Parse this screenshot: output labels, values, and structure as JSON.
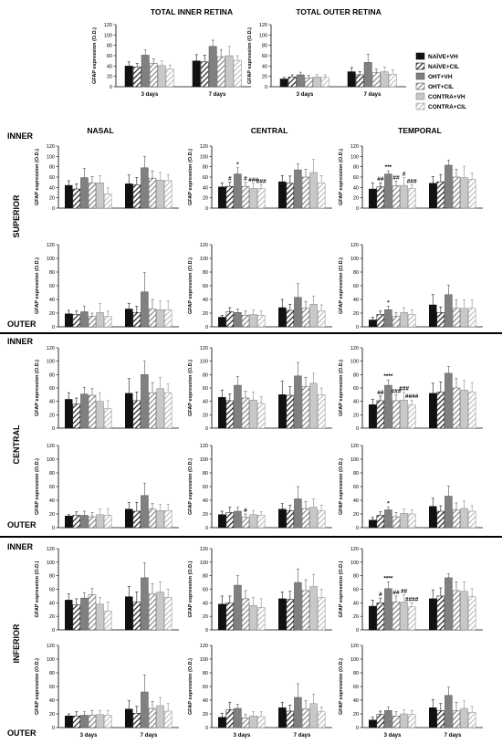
{
  "figure": {
    "top_titles": [
      "TOTAL INNER RETINA",
      "TOTAL OUTER RETINA"
    ],
    "column_titles": [
      "NASAL",
      "CENTRAL",
      "TEMPORAL"
    ],
    "row_group_labels": [
      "SUPERIOR",
      "CENTRAL",
      "INFERIOR"
    ],
    "layer_labels": {
      "inner": "INNER",
      "outer": "OUTER"
    }
  },
  "legend": [
    {
      "label": "NAÏVE+VH",
      "pattern": "solid-black"
    },
    {
      "label": "NAÏVE+CIL",
      "pattern": "hatch-black"
    },
    {
      "label": "OHT+VH",
      "pattern": "solid-gray"
    },
    {
      "label": "OHT+CIL",
      "pattern": "hatch-gray"
    },
    {
      "label": "CONTRA+VH",
      "pattern": "solid-light"
    },
    {
      "label": "CONTRA+CIL",
      "pattern": "hatch-light"
    }
  ],
  "colors": {
    "naive": "#111111",
    "oht": "#808080",
    "contra": "#c8c8c8",
    "separator": "#000000"
  },
  "chart_data": [
    {
      "id": "total-inner",
      "type": "bar",
      "title": "TOTAL INNER RETINA",
      "ylabel": "GFAP expression (O.D.)",
      "ylim": [
        0,
        120
      ],
      "ticks": [
        0,
        20,
        40,
        60,
        80,
        100,
        120
      ],
      "categories": [
        "3 days",
        "7 days"
      ],
      "series_names": [
        "NAÏVE+VH",
        "NAÏVE+CIL",
        "OHT+VH",
        "OHT+CIL",
        "CONTRA+VH",
        "CONTRA+CIL"
      ],
      "values": [
        [
          40,
          38,
          61,
          45,
          41,
          34
        ],
        [
          50,
          48,
          78,
          58,
          60,
          51
        ]
      ],
      "errors": [
        [
          8,
          7,
          10,
          9,
          9,
          8
        ],
        [
          12,
          13,
          12,
          14,
          18,
          9
        ]
      ],
      "annotations": []
    },
    {
      "id": "total-outer",
      "type": "bar",
      "title": "TOTAL OUTER RETINA",
      "ylabel": "GFAP expression (O.D.)",
      "ylim": [
        0,
        120
      ],
      "ticks": [
        0,
        20,
        40,
        60,
        80,
        100,
        120
      ],
      "categories": [
        "3 days",
        "7 days"
      ],
      "series_names": [
        "NAÏVE+VH",
        "NAÏVE+CIL",
        "OHT+VH",
        "OHT+CIL",
        "CONTRA+VH",
        "CONTRA+CIL"
      ],
      "values": [
        [
          15,
          19,
          23,
          17,
          19,
          18
        ],
        [
          29,
          23,
          47,
          27,
          29,
          24
        ]
      ],
      "errors": [
        [
          3,
          4,
          5,
          5,
          5,
          5
        ],
        [
          8,
          6,
          16,
          7,
          9,
          9
        ]
      ],
      "annotations": []
    },
    {
      "id": "sup-inner-nasal",
      "type": "bar",
      "ylabel": "GFAP expression (O.D.)",
      "ylim": [
        0,
        120
      ],
      "ticks": [
        0,
        20,
        40,
        60,
        80,
        100,
        120
      ],
      "categories": [
        "3 days",
        "7 days"
      ],
      "values": [
        [
          44,
          37,
          59,
          49,
          49,
          27
        ],
        [
          47,
          45,
          78,
          58,
          54,
          53
        ]
      ],
      "errors": [
        [
          9,
          10,
          18,
          12,
          14,
          12
        ],
        [
          17,
          14,
          22,
          14,
          15,
          12
        ]
      ],
      "annotations": []
    },
    {
      "id": "sup-inner-central",
      "type": "bar",
      "ylabel": "GFAP expression (O.D.)",
      "ylim": [
        0,
        120
      ],
      "ticks": [
        0,
        20,
        40,
        60,
        80,
        100,
        120
      ],
      "categories": [
        "3 days",
        "7 days"
      ],
      "values": [
        [
          41,
          42,
          66,
          42,
          38,
          38
        ],
        [
          51,
          48,
          74,
          60,
          69,
          49
        ]
      ],
      "errors": [
        [
          8,
          8,
          12,
          8,
          10,
          7
        ],
        [
          12,
          14,
          12,
          15,
          25,
          14
        ]
      ],
      "annotations": [
        {
          "cat": 0,
          "bar": 1,
          "text": "#"
        },
        {
          "cat": 0,
          "bar": 2,
          "text": "*"
        },
        {
          "cat": 0,
          "bar": 3,
          "text": "#"
        },
        {
          "cat": 0,
          "bar": 4,
          "text": "###"
        },
        {
          "cat": 0,
          "bar": 5,
          "text": "###"
        }
      ]
    },
    {
      "id": "sup-inner-temporal",
      "type": "bar",
      "ylabel": "GFAP expression (O.D.)",
      "ylim": [
        0,
        120
      ],
      "ticks": [
        0,
        20,
        40,
        60,
        80,
        100,
        120
      ],
      "categories": [
        "3 days",
        "7 days"
      ],
      "values": [
        [
          37,
          41,
          66,
          43,
          44,
          38
        ],
        [
          48,
          51,
          83,
          60,
          59,
          56
        ]
      ],
      "errors": [
        [
          12,
          8,
          6,
          9,
          15,
          7
        ],
        [
          13,
          14,
          10,
          15,
          22,
          12
        ]
      ],
      "annotations": [
        {
          "cat": 0,
          "bar": 1,
          "text": "##"
        },
        {
          "cat": 0,
          "bar": 2,
          "text": "***"
        },
        {
          "cat": 0,
          "bar": 3,
          "text": "##"
        },
        {
          "cat": 0,
          "bar": 4,
          "text": "#"
        },
        {
          "cat": 0,
          "bar": 5,
          "text": "###"
        }
      ]
    },
    {
      "id": "sup-outer-nasal",
      "type": "bar",
      "ylabel": "GFAP expression (O.D.)",
      "ylim": [
        0,
        120
      ],
      "ticks": [
        0,
        20,
        40,
        60,
        80,
        100,
        120
      ],
      "categories": [
        "3 days",
        "7 days"
      ],
      "values": [
        [
          19,
          18,
          22,
          15,
          21,
          15
        ],
        [
          26,
          21,
          51,
          26,
          25,
          25
        ]
      ],
      "errors": [
        [
          5,
          5,
          8,
          5,
          13,
          8
        ],
        [
          8,
          9,
          28,
          14,
          13,
          13
        ]
      ],
      "annotations": []
    },
    {
      "id": "sup-outer-central",
      "type": "bar",
      "ylabel": "GFAP expression (O.D.)",
      "ylim": [
        0,
        120
      ],
      "ticks": [
        0,
        20,
        40,
        60,
        80,
        100,
        120
      ],
      "categories": [
        "3 days",
        "7 days"
      ],
      "values": [
        [
          14,
          22,
          21,
          17,
          18,
          17
        ],
        [
          28,
          24,
          43,
          27,
          33,
          23
        ]
      ],
      "errors": [
        [
          3,
          6,
          5,
          6,
          7,
          6
        ],
        [
          12,
          9,
          20,
          10,
          12,
          9
        ]
      ],
      "annotations": []
    },
    {
      "id": "sup-outer-temporal",
      "type": "bar",
      "ylabel": "GFAP expression (O.D.)",
      "ylim": [
        0,
        120
      ],
      "ticks": [
        0,
        20,
        40,
        60,
        80,
        100,
        120
      ],
      "categories": [
        "3 days",
        "7 days"
      ],
      "values": [
        [
          10,
          18,
          25,
          15,
          21,
          18
        ],
        [
          32,
          21,
          47,
          27,
          27,
          27
        ]
      ],
      "errors": [
        [
          4,
          5,
          5,
          6,
          7,
          7
        ],
        [
          15,
          8,
          14,
          12,
          12,
          12
        ]
      ],
      "annotations": [
        {
          "cat": 0,
          "bar": 2,
          "text": "*"
        }
      ]
    },
    {
      "id": "cen-inner-nasal",
      "type": "bar",
      "ylabel": "GFAP expression (O.D.)",
      "ylim": [
        0,
        120
      ],
      "ticks": [
        0,
        20,
        40,
        60,
        80,
        100,
        120
      ],
      "categories": [
        "3 days",
        "7 days"
      ],
      "values": [
        [
          43,
          36,
          51,
          49,
          40,
          29
        ],
        [
          52,
          41,
          80,
          53,
          59,
          53
        ]
      ],
      "errors": [
        [
          10,
          9,
          10,
          10,
          13,
          12
        ],
        [
          22,
          13,
          20,
          15,
          17,
          13
        ]
      ],
      "annotations": []
    },
    {
      "id": "cen-inner-central",
      "type": "bar",
      "ylabel": "GFAP expression (O.D.)",
      "ylim": [
        0,
        120
      ],
      "ticks": [
        0,
        20,
        40,
        60,
        80,
        100,
        120
      ],
      "categories": [
        "3 days",
        "7 days"
      ],
      "values": [
        [
          46,
          41,
          64,
          45,
          42,
          37
        ],
        [
          50,
          49,
          78,
          62,
          67,
          50
        ]
      ],
      "errors": [
        [
          11,
          10,
          13,
          10,
          12,
          10
        ],
        [
          20,
          13,
          20,
          14,
          15,
          10
        ]
      ],
      "annotations": []
    },
    {
      "id": "cen-inner-temporal",
      "type": "bar",
      "ylabel": "GFAP expression (O.D.)",
      "ylim": [
        0,
        120
      ],
      "ticks": [
        0,
        20,
        40,
        60,
        80,
        100,
        120
      ],
      "categories": [
        "3 days",
        "7 days"
      ],
      "values": [
        [
          35,
          41,
          64,
          41,
          42,
          35
        ],
        [
          52,
          54,
          82,
          60,
          57,
          54
        ]
      ],
      "errors": [
        [
          8,
          7,
          8,
          9,
          12,
          7
        ],
        [
          15,
          15,
          10,
          14,
          14,
          14
        ]
      ],
      "annotations": [
        {
          "cat": 0,
          "bar": 1,
          "text": "##"
        },
        {
          "cat": 0,
          "bar": 2,
          "text": "****"
        },
        {
          "cat": 0,
          "bar": 3,
          "text": "###"
        },
        {
          "cat": 0,
          "bar": 4,
          "text": "###"
        },
        {
          "cat": 0,
          "bar": 5,
          "text": "####"
        }
      ]
    },
    {
      "id": "cen-outer-nasal",
      "type": "bar",
      "ylabel": "GFAP expression (O.D.)",
      "ylim": [
        0,
        120
      ],
      "ticks": [
        0,
        20,
        40,
        60,
        80,
        100,
        120
      ],
      "categories": [
        "3 days",
        "7 days"
      ],
      "values": [
        [
          17,
          18,
          18,
          16,
          19,
          18
        ],
        [
          27,
          24,
          47,
          27,
          25,
          25
        ]
      ],
      "errors": [
        [
          2,
          5,
          6,
          6,
          8,
          10
        ],
        [
          10,
          13,
          18,
          8,
          9,
          9
        ]
      ],
      "annotations": []
    },
    {
      "id": "cen-outer-central",
      "type": "bar",
      "ylabel": "GFAP expression (O.D.)",
      "ylim": [
        0,
        120
      ],
      "ticks": [
        0,
        20,
        40,
        60,
        80,
        100,
        120
      ],
      "categories": [
        "3 days",
        "7 days"
      ],
      "values": [
        [
          19,
          22,
          24,
          15,
          19,
          18
        ],
        [
          27,
          25,
          42,
          28,
          30,
          25
        ]
      ],
      "errors": [
        [
          5,
          8,
          6,
          5,
          6,
          5
        ],
        [
          8,
          8,
          18,
          10,
          12,
          8
        ]
      ],
      "annotations": [
        {
          "cat": 0,
          "bar": 3,
          "text": "#"
        }
      ]
    },
    {
      "id": "cen-outer-temporal",
      "type": "bar",
      "ylabel": "GFAP expression (O.D.)",
      "ylim": [
        0,
        120
      ],
      "ticks": [
        0,
        20,
        40,
        60,
        80,
        100,
        120
      ],
      "categories": [
        "3 days",
        "7 days"
      ],
      "values": [
        [
          11,
          18,
          26,
          16,
          21,
          20
        ],
        [
          31,
          24,
          46,
          26,
          28,
          24
        ]
      ],
      "errors": [
        [
          4,
          5,
          4,
          6,
          6,
          6
        ],
        [
          12,
          8,
          15,
          10,
          11,
          8
        ]
      ],
      "annotations": [
        {
          "cat": 0,
          "bar": 2,
          "text": "*"
        }
      ]
    },
    {
      "id": "inf-inner-nasal",
      "type": "bar",
      "ylabel": "GFAP expression (O.D.)",
      "ylim": [
        0,
        120
      ],
      "ticks": [
        0,
        20,
        40,
        60,
        80,
        100,
        120
      ],
      "categories": [
        "3 days",
        "7 days"
      ],
      "values": [
        [
          44,
          37,
          47,
          52,
          38,
          28
        ],
        [
          49,
          41,
          77,
          53,
          56,
          48
        ]
      ],
      "errors": [
        [
          9,
          9,
          8,
          9,
          10,
          13
        ],
        [
          15,
          15,
          22,
          15,
          15,
          12
        ]
      ],
      "annotations": []
    },
    {
      "id": "inf-inner-central",
      "type": "bar",
      "ylabel": "GFAP expression (O.D.)",
      "ylim": [
        0,
        120
      ],
      "ticks": [
        0,
        20,
        40,
        60,
        80,
        100,
        120
      ],
      "categories": [
        "3 days",
        "7 days"
      ],
      "values": [
        [
          38,
          40,
          66,
          46,
          36,
          33
        ],
        [
          46,
          45,
          70,
          58,
          64,
          48
        ]
      ],
      "errors": [
        [
          12,
          10,
          14,
          12,
          12,
          13
        ],
        [
          10,
          12,
          20,
          16,
          18,
          12
        ]
      ],
      "annotations": []
    },
    {
      "id": "inf-inner-temporal",
      "type": "bar",
      "ylabel": "GFAP expression (O.D.)",
      "ylim": [
        0,
        120
      ],
      "ticks": [
        0,
        20,
        40,
        60,
        80,
        100,
        120
      ],
      "categories": [
        "3 days",
        "7 days"
      ],
      "values": [
        [
          35,
          40,
          61,
          41,
          41,
          34
        ],
        [
          46,
          50,
          77,
          58,
          57,
          49
        ]
      ],
      "errors": [
        [
          9,
          7,
          10,
          9,
          11,
          6
        ],
        [
          13,
          12,
          6,
          13,
          14,
          12
        ]
      ],
      "annotations": [
        {
          "cat": 0,
          "bar": 1,
          "text": "#"
        },
        {
          "cat": 0,
          "bar": 2,
          "text": "****"
        },
        {
          "cat": 0,
          "bar": 3,
          "text": "##"
        },
        {
          "cat": 0,
          "bar": 4,
          "text": "##"
        },
        {
          "cat": 0,
          "bar": 5,
          "text": "####"
        }
      ]
    },
    {
      "id": "inf-outer-nasal",
      "type": "bar",
      "ylabel": "GFAP expression (O.D.)",
      "ylim": [
        0,
        120
      ],
      "ticks": [
        0,
        20,
        40,
        60,
        80,
        100,
        120
      ],
      "categories": [
        "3 days",
        "7 days"
      ],
      "values": [
        [
          17,
          17,
          18,
          18,
          19,
          18
        ],
        [
          27,
          21,
          52,
          28,
          32,
          24
        ]
      ],
      "errors": [
        [
          3,
          6,
          5,
          7,
          6,
          7
        ],
        [
          12,
          10,
          25,
          10,
          12,
          11
        ]
      ],
      "annotations": []
    },
    {
      "id": "inf-outer-central",
      "type": "bar",
      "ylabel": "GFAP expression (O.D.)",
      "ylim": [
        0,
        120
      ],
      "ticks": [
        0,
        20,
        40,
        60,
        80,
        100,
        120
      ],
      "categories": [
        "3 days",
        "7 days"
      ],
      "values": [
        [
          15,
          26,
          28,
          14,
          17,
          16
        ],
        [
          29,
          24,
          44,
          27,
          35,
          23
        ]
      ],
      "errors": [
        [
          6,
          11,
          6,
          5,
          6,
          7
        ],
        [
          8,
          9,
          20,
          12,
          14,
          7
        ]
      ],
      "annotations": []
    },
    {
      "id": "inf-outer-temporal",
      "type": "bar",
      "ylabel": "GFAP expression (O.D.)",
      "ylim": [
        0,
        120
      ],
      "ticks": [
        0,
        20,
        40,
        60,
        80,
        100,
        120
      ],
      "categories": [
        "3 days",
        "7 days"
      ],
      "values": [
        [
          11,
          19,
          25,
          17,
          20,
          19
        ],
        [
          29,
          25,
          47,
          25,
          28,
          22
        ]
      ],
      "errors": [
        [
          4,
          5,
          5,
          6,
          6,
          6
        ],
        [
          12,
          10,
          12,
          12,
          11,
          9
        ]
      ],
      "annotations": []
    }
  ]
}
